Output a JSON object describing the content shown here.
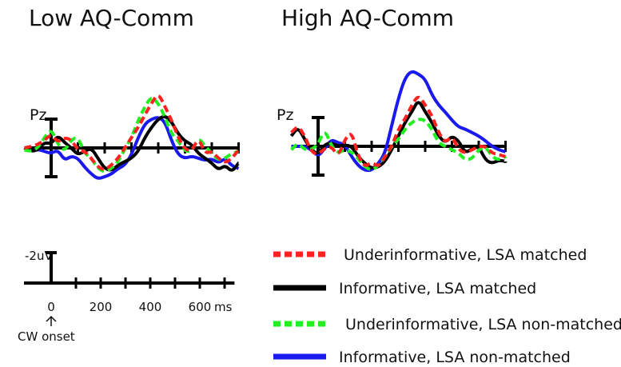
{
  "chart_data": {
    "type": "line",
    "panels": [
      {
        "title": "Low AQ-Comm",
        "channel": "Pz"
      },
      {
        "title": "High AQ-Comm",
        "channel": "Pz"
      }
    ],
    "scale": {
      "amplitude_label": "-2uV",
      "x_ticks": [
        0,
        200,
        400,
        600
      ],
      "x_unit": "ms",
      "onset_label": "CW onset"
    },
    "legend": [
      {
        "label": "Underinformative, LSA matched",
        "color": "#ff2020",
        "style": "dashed"
      },
      {
        "label": "Informative, LSA matched",
        "color": "#000000",
        "style": "solid"
      },
      {
        "label": "Underinformative, LSA non-matched",
        "color": "#22ee22",
        "style": "dashed"
      },
      {
        "label": "Informative, LSA non-matched",
        "color": "#1a1aee",
        "style": "solid"
      }
    ],
    "x": [
      -100,
      -75,
      -50,
      -25,
      0,
      25,
      50,
      75,
      100,
      125,
      150,
      175,
      200,
      225,
      250,
      275,
      300,
      325,
      350,
      375,
      400,
      425,
      450,
      475,
      500,
      525,
      550,
      575,
      600,
      625,
      650,
      675,
      700
    ],
    "series": [
      {
        "panel": 0,
        "series": 0,
        "values": [
          0,
          0.2,
          0.5,
          1.1,
          2.0,
          0.8,
          1.5,
          1.2,
          -0.3,
          -0.5,
          -1.5,
          -2.8,
          -3.2,
          -2.5,
          -1.5,
          0,
          1.5,
          3,
          4.8,
          6.5,
          8,
          6,
          4,
          1.5,
          -0.2,
          -0.5,
          1.5,
          -0.8,
          -0.5,
          -1.5,
          -2.2,
          -1.5,
          -0.3
        ]
      },
      {
        "panel": 0,
        "series": 1,
        "values": [
          0,
          -0.5,
          -0.3,
          0.8,
          0.6,
          1.8,
          0.8,
          0,
          -1,
          -0.5,
          0,
          -1.5,
          -3,
          -3.3,
          -2.5,
          -2,
          -1.5,
          -0.5,
          1.5,
          3,
          4.2,
          4.7,
          3.8,
          2,
          1,
          0.5,
          -0.8,
          -1.5,
          -2.2,
          -3.2,
          -2.5,
          -3.5,
          -2.2
        ]
      },
      {
        "panel": 0,
        "series": 2,
        "values": [
          -0.3,
          -0.5,
          0,
          1.5,
          2.8,
          0.5,
          -0.5,
          1.2,
          1.6,
          -0.8,
          -1.5,
          -3,
          -3.5,
          -3,
          -2,
          -0.2,
          1.5,
          4,
          6,
          7.5,
          6.5,
          4.5,
          2,
          1,
          -0.5,
          -0.5,
          1.5,
          0.3,
          -0.8,
          -1.8,
          -1.5,
          -0.8,
          -0.5
        ]
      },
      {
        "panel": 0,
        "series": 3,
        "values": [
          0,
          -0.5,
          -0.2,
          -0.5,
          -0.8,
          -0.3,
          -1.8,
          -1.2,
          -1.5,
          -2.8,
          -3.8,
          -4.5,
          -4.2,
          -3.8,
          -3,
          -2.5,
          -1,
          1.5,
          3.5,
          4.2,
          4.5,
          3.8,
          1,
          -1,
          -1.5,
          -1.2,
          -1.5,
          -1.8,
          -1.6,
          -2.2,
          -1.5,
          -2.6,
          -3
        ]
      },
      {
        "panel": 1,
        "series": 0,
        "values": [
          2,
          3,
          1.5,
          -0.8,
          -1.2,
          -0.3,
          0,
          -1.5,
          1,
          2.2,
          -1.5,
          -3,
          -2.3,
          -3,
          -1.5,
          0,
          2.5,
          4,
          6,
          7.5,
          6,
          4.5,
          2,
          0.5,
          1.5,
          -0.5,
          -1,
          -0.5,
          0,
          0,
          -1,
          -1.2,
          -1.5
        ]
      },
      {
        "panel": 1,
        "series": 1,
        "values": [
          1.5,
          2.8,
          1,
          -0.5,
          -1.2,
          0.3,
          0.5,
          0,
          0.2,
          0,
          -1.5,
          -2.5,
          -3.2,
          -3,
          -2.2,
          -0.5,
          1.5,
          3.5,
          5,
          6.8,
          5,
          3.5,
          1.5,
          0.5,
          1.5,
          0.8,
          -1,
          -0.3,
          0,
          -2,
          -2.5,
          -2,
          -2.2
        ]
      },
      {
        "panel": 1,
        "series": 2,
        "values": [
          -0.5,
          0.5,
          -0.5,
          -0.5,
          0.3,
          2.5,
          0,
          -1,
          -0.5,
          -0.8,
          -1.8,
          -3,
          -3.5,
          -2.8,
          -1.5,
          0,
          1,
          2.5,
          3.5,
          4,
          3.8,
          2.5,
          0.5,
          0,
          -0.5,
          -1,
          -2,
          -1.8,
          -0.5,
          0,
          -1.5,
          -2,
          -1.5
        ]
      },
      {
        "panel": 1,
        "series": 3,
        "values": [
          0,
          0,
          0,
          -0.5,
          -1.5,
          -0.3,
          1,
          0.5,
          0.3,
          -1.5,
          -2.8,
          -3.5,
          -3.5,
          -2.5,
          -1,
          3,
          7,
          10,
          11,
          10.5,
          9.8,
          7.5,
          6,
          5,
          3.8,
          2.8,
          2.5,
          2,
          1.5,
          0.8,
          0,
          -0.5,
          -0.8
        ]
      }
    ]
  }
}
